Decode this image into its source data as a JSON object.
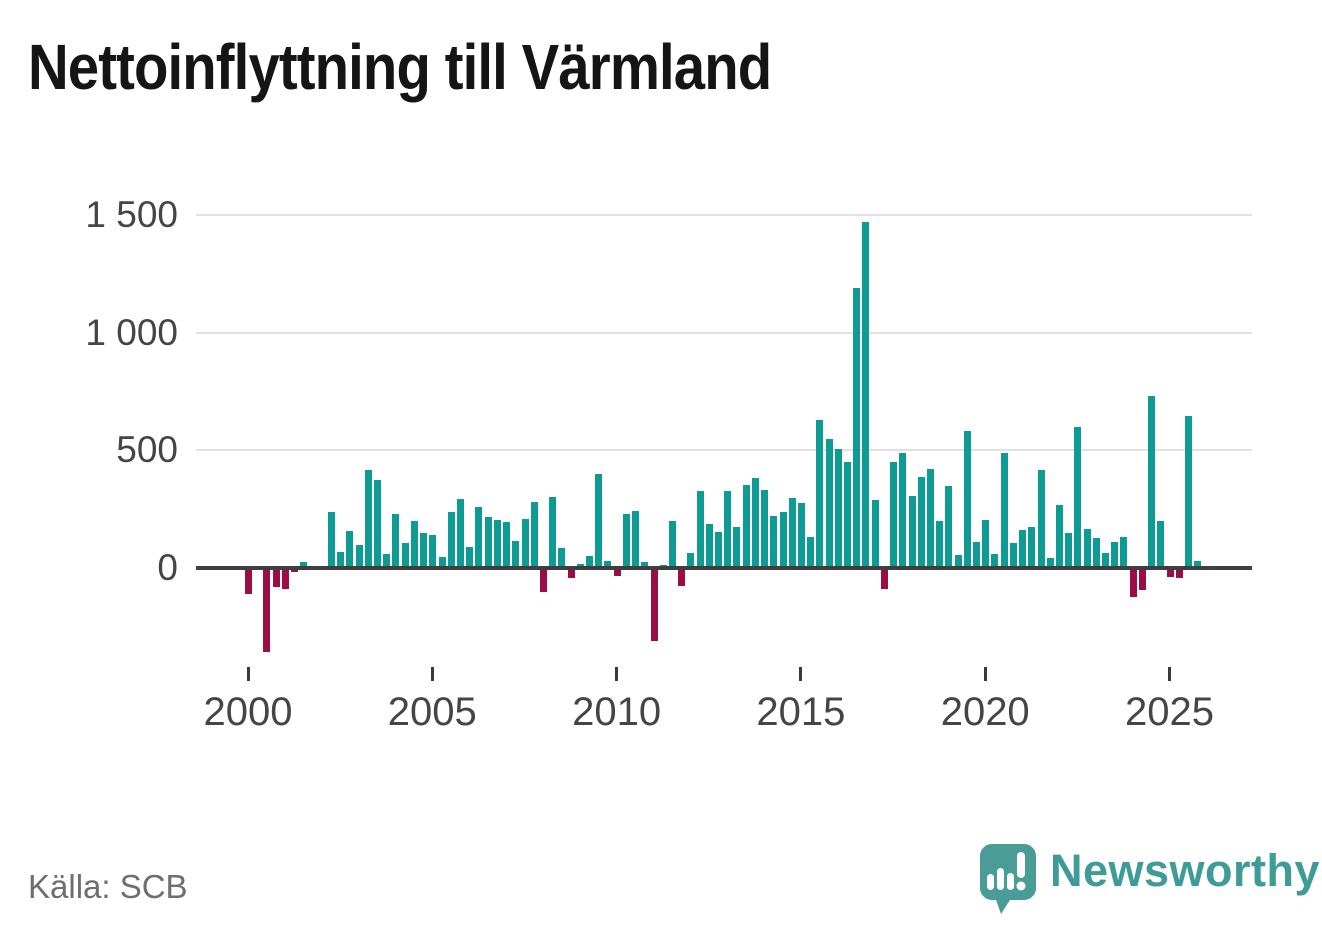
{
  "title": "Nettoinflyttning till Värmland",
  "source": "Källa: SCB",
  "brand": {
    "name": "Newsworthy",
    "color": "#3f9b98"
  },
  "colors": {
    "positive_bar": "#0d9b93",
    "negative_bar": "#9c0d45",
    "title_text": "#151515",
    "axis_text": "#454545",
    "grid_line": "#e1e1e1",
    "zero_axis": "#3e3e3e",
    "source_text": "#6e6e6e"
  },
  "chart_data": {
    "type": "bar",
    "title": "Nettoinflyttning till Värmland",
    "frequency": "quarterly",
    "start": "2000-Q1",
    "end": "2025-Q4",
    "unit": "persons (net migration per quarter)",
    "grid": "horizontal",
    "legend": "none",
    "y_axis": {
      "ticks": [
        0,
        500,
        1000,
        1500
      ],
      "tick_labels": [
        "0",
        "500",
        "1 000",
        "1 500"
      ],
      "range": [
        -400,
        1550
      ]
    },
    "x_axis": {
      "tick_years": [
        2000,
        2005,
        2010,
        2015,
        2020,
        2025
      ],
      "tick_labels": [
        "2000",
        "2005",
        "2010",
        "2015",
        "2020",
        "2025"
      ]
    },
    "years": [
      {
        "year": 2000,
        "quarters": [
          -110,
          0,
          -355,
          -80
        ]
      },
      {
        "year": 2001,
        "quarters": [
          -90,
          -17,
          25,
          0
        ]
      },
      {
        "year": 2002,
        "quarters": [
          0,
          237,
          70,
          158
        ]
      },
      {
        "year": 2003,
        "quarters": [
          100,
          418,
          375,
          60
        ]
      },
      {
        "year": 2004,
        "quarters": [
          230,
          108,
          198,
          150
        ]
      },
      {
        "year": 2005,
        "quarters": [
          140,
          45,
          240,
          295
        ]
      },
      {
        "year": 2006,
        "quarters": [
          88,
          258,
          215,
          205
        ]
      },
      {
        "year": 2007,
        "quarters": [
          195,
          116,
          210,
          281
        ]
      },
      {
        "year": 2008,
        "quarters": [
          -102,
          300,
          86,
          -42
        ]
      },
      {
        "year": 2009,
        "quarters": [
          17,
          50,
          399,
          32
        ]
      },
      {
        "year": 2010,
        "quarters": [
          -35,
          229,
          241,
          25
        ]
      },
      {
        "year": 2011,
        "quarters": [
          -311,
          14,
          198,
          -78
        ]
      },
      {
        "year": 2012,
        "quarters": [
          65,
          327,
          188,
          155
        ]
      },
      {
        "year": 2013,
        "quarters": [
          329,
          175,
          351,
          382
        ]
      },
      {
        "year": 2014,
        "quarters": [
          330,
          220,
          236,
          298
        ]
      },
      {
        "year": 2015,
        "quarters": [
          275,
          133,
          627,
          550
        ]
      },
      {
        "year": 2016,
        "quarters": [
          507,
          452,
          1191,
          1469
        ]
      },
      {
        "year": 2017,
        "quarters": [
          290,
          -89,
          452,
          490
        ]
      },
      {
        "year": 2018,
        "quarters": [
          307,
          386,
          422,
          198
        ]
      },
      {
        "year": 2019,
        "quarters": [
          350,
          55,
          582,
          110
        ]
      },
      {
        "year": 2020,
        "quarters": [
          205,
          60,
          490,
          105
        ]
      },
      {
        "year": 2021,
        "quarters": [
          161,
          176,
          416,
          42
        ]
      },
      {
        "year": 2022,
        "quarters": [
          269,
          151,
          600,
          168
        ]
      },
      {
        "year": 2023,
        "quarters": [
          126,
          64,
          112,
          133
        ]
      },
      {
        "year": 2024,
        "quarters": [
          -122,
          -93,
          732,
          198
        ]
      },
      {
        "year": 2025,
        "quarters": [
          -40,
          -44,
          645,
          28
        ]
      }
    ]
  }
}
